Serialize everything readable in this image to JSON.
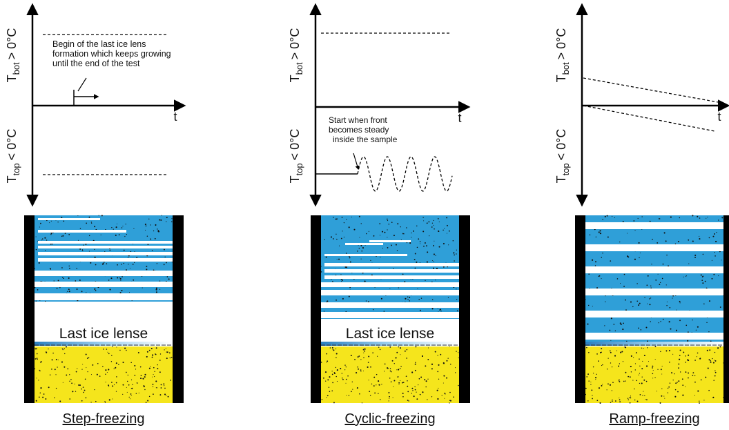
{
  "panels": [
    {
      "title": "Step-freezing",
      "upper_label": {
        "symbol": "T",
        "subscript": "bot",
        "condition": "> 0°C"
      },
      "lower_label": {
        "symbol": "T",
        "subscript": "top",
        "condition": "< 0°C"
      },
      "axis_label": "t",
      "annotation": [
        "Begin of the last ice lens",
        "formation which keeps growing",
        "until the end of the test"
      ],
      "lens_label": "Last ice lense"
    },
    {
      "title": "Cyclic-freezing",
      "upper_label": {
        "symbol": "T",
        "subscript": "bot",
        "condition": "> 0°C"
      },
      "lower_label": {
        "symbol": "T",
        "subscript": "top",
        "condition": "< 0°C"
      },
      "axis_label": "t",
      "annotation": [
        "Start when front",
        "becomes steady",
        "inside the sample"
      ],
      "lens_label": "Last ice lense"
    },
    {
      "title": "Ramp-freezing",
      "upper_label": {
        "symbol": "T",
        "subscript": "bot",
        "condition": "> 0°C"
      },
      "lower_label": {
        "symbol": "T",
        "subscript": "top",
        "condition": "< 0°C"
      },
      "axis_label": "t"
    }
  ]
}
